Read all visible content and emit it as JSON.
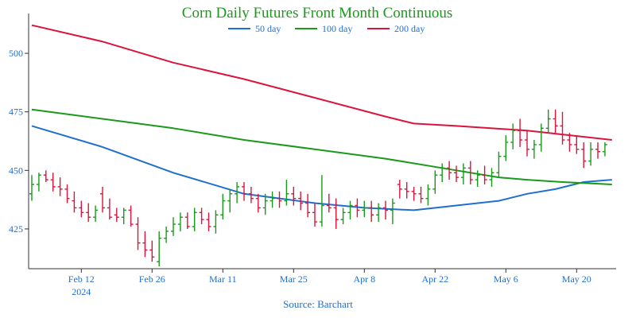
{
  "chart_data": {
    "type": "ohlc",
    "title": "Corn Daily Futures Front Month Continuous",
    "source": "Source: Barchart",
    "xlabel": "",
    "ylabel": "",
    "ylim": [
      408,
      517
    ],
    "y_ticks": [
      425,
      450,
      475,
      500
    ],
    "x_ticks": [
      {
        "index": 7,
        "label": "Feb 12",
        "sub": "2024"
      },
      {
        "index": 17,
        "label": "Feb 26",
        "sub": ""
      },
      {
        "index": 27,
        "label": "Mar 11",
        "sub": ""
      },
      {
        "index": 37,
        "label": "Mar 25",
        "sub": ""
      },
      {
        "index": 47,
        "label": "Apr 8",
        "sub": ""
      },
      {
        "index": 57,
        "label": "Apr 22",
        "sub": ""
      },
      {
        "index": 67,
        "label": "May 6",
        "sub": ""
      },
      {
        "index": 77,
        "label": "May 20",
        "sub": ""
      }
    ],
    "legend": [
      {
        "name": "50 day",
        "color": "#1f6fd1"
      },
      {
        "name": "100 day",
        "color": "#1a9a1a"
      },
      {
        "name": "200 day",
        "color": "#dc143c"
      }
    ],
    "colors": {
      "up": "#1a9a1a",
      "down": "#dc143c",
      "title": "#1a9a1a",
      "source": "#1f6fd1",
      "axis": "#333333"
    },
    "bars": [
      [
        440,
        448,
        437,
        444
      ],
      [
        444,
        449,
        441,
        448
      ],
      [
        448,
        450,
        445,
        446
      ],
      [
        446,
        449,
        441,
        443
      ],
      [
        443,
        447,
        439,
        442
      ],
      [
        442,
        444,
        436,
        438
      ],
      [
        437,
        441,
        432,
        434
      ],
      [
        434,
        437,
        430,
        432
      ],
      [
        432,
        436,
        428,
        430
      ],
      [
        430,
        435,
        428,
        433
      ],
      [
        440,
        443,
        432,
        434
      ],
      [
        434,
        438,
        429,
        430
      ],
      [
        431,
        434,
        428,
        430
      ],
      [
        430,
        434,
        427,
        433
      ],
      [
        433,
        435,
        426,
        427
      ],
      [
        427,
        430,
        416,
        419
      ],
      [
        419,
        424,
        413,
        416
      ],
      [
        416,
        420,
        411,
        413
      ],
      [
        411,
        424,
        409,
        421
      ],
      [
        421,
        426,
        419,
        424
      ],
      [
        424,
        430,
        422,
        427
      ],
      [
        427,
        432,
        424,
        430
      ],
      [
        430,
        432,
        425,
        426
      ],
      [
        426,
        434,
        424,
        432
      ],
      [
        432,
        434,
        427,
        429
      ],
      [
        429,
        432,
        424,
        426
      ],
      [
        426,
        433,
        423,
        431
      ],
      [
        431,
        440,
        429,
        437
      ],
      [
        437,
        442,
        432,
        440
      ],
      [
        440,
        445,
        436,
        443
      ],
      [
        443,
        445,
        437,
        440
      ],
      [
        440,
        443,
        436,
        438
      ],
      [
        438,
        440,
        432,
        434
      ],
      [
        434,
        440,
        431,
        437
      ],
      [
        437,
        441,
        434,
        438
      ],
      [
        438,
        441,
        434,
        437
      ],
      [
        437,
        446,
        435,
        440
      ],
      [
        440,
        443,
        435,
        438
      ],
      [
        438,
        441,
        433,
        436
      ],
      [
        436,
        440,
        430,
        432
      ],
      [
        432,
        436,
        426,
        428
      ],
      [
        428,
        448,
        426,
        435
      ],
      [
        435,
        440,
        432,
        434
      ],
      [
        434,
        438,
        425,
        429
      ],
      [
        429,
        434,
        427,
        432
      ],
      [
        432,
        437,
        429,
        435
      ],
      [
        435,
        438,
        430,
        433
      ],
      [
        433,
        437,
        430,
        434
      ],
      [
        434,
        437,
        428,
        431
      ],
      [
        431,
        436,
        428,
        434
      ],
      [
        434,
        437,
        429,
        433
      ],
      [
        433,
        438,
        427,
        436
      ],
      [
        444,
        446,
        438,
        442
      ],
      [
        442,
        445,
        438,
        441
      ],
      [
        441,
        443,
        437,
        440
      ],
      [
        440,
        443,
        436,
        438
      ],
      [
        438,
        444,
        435,
        442
      ],
      [
        442,
        450,
        440,
        448
      ],
      [
        448,
        453,
        445,
        451
      ],
      [
        451,
        454,
        446,
        449
      ],
      [
        449,
        452,
        445,
        447
      ],
      [
        447,
        453,
        444,
        451
      ],
      [
        451,
        454,
        444,
        446
      ],
      [
        446,
        450,
        443,
        448
      ],
      [
        448,
        452,
        444,
        446
      ],
      [
        446,
        451,
        443,
        449
      ],
      [
        449,
        458,
        447,
        456
      ],
      [
        456,
        465,
        454,
        462
      ],
      [
        462,
        470,
        459,
        467
      ],
      [
        467,
        472,
        460,
        463
      ],
      [
        463,
        467,
        456,
        459
      ],
      [
        459,
        463,
        455,
        461
      ],
      [
        461,
        470,
        458,
        468
      ],
      [
        468,
        476,
        466,
        472
      ],
      [
        472,
        476,
        466,
        469
      ],
      [
        469,
        475,
        461,
        463
      ],
      [
        463,
        466,
        458,
        461
      ],
      [
        461,
        465,
        457,
        459
      ],
      [
        459,
        462,
        451,
        454
      ],
      [
        454,
        462,
        452,
        459
      ],
      [
        459,
        462,
        455,
        458
      ],
      [
        458,
        462,
        456,
        461
      ]
    ],
    "series": [
      {
        "name": "50 day",
        "points": [
          [
            0,
            469
          ],
          [
            10,
            460
          ],
          [
            20,
            449
          ],
          [
            30,
            440
          ],
          [
            40,
            436
          ],
          [
            47,
            434
          ],
          [
            54,
            433
          ],
          [
            60,
            435
          ],
          [
            66,
            437
          ],
          [
            70,
            440
          ],
          [
            74,
            442
          ],
          [
            78,
            445
          ],
          [
            82,
            446
          ]
        ]
      },
      {
        "name": "100 day",
        "points": [
          [
            0,
            476
          ],
          [
            10,
            472
          ],
          [
            20,
            468
          ],
          [
            30,
            463
          ],
          [
            40,
            459
          ],
          [
            50,
            455
          ],
          [
            60,
            450
          ],
          [
            66,
            447
          ],
          [
            70,
            446
          ],
          [
            75,
            445
          ],
          [
            82,
            444
          ]
        ]
      },
      {
        "name": "200 day",
        "points": [
          [
            0,
            512
          ],
          [
            10,
            505
          ],
          [
            20,
            496
          ],
          [
            30,
            489
          ],
          [
            40,
            481
          ],
          [
            50,
            473
          ],
          [
            54,
            470
          ],
          [
            60,
            469
          ],
          [
            70,
            467
          ],
          [
            76,
            465
          ],
          [
            82,
            463
          ]
        ]
      }
    ]
  }
}
